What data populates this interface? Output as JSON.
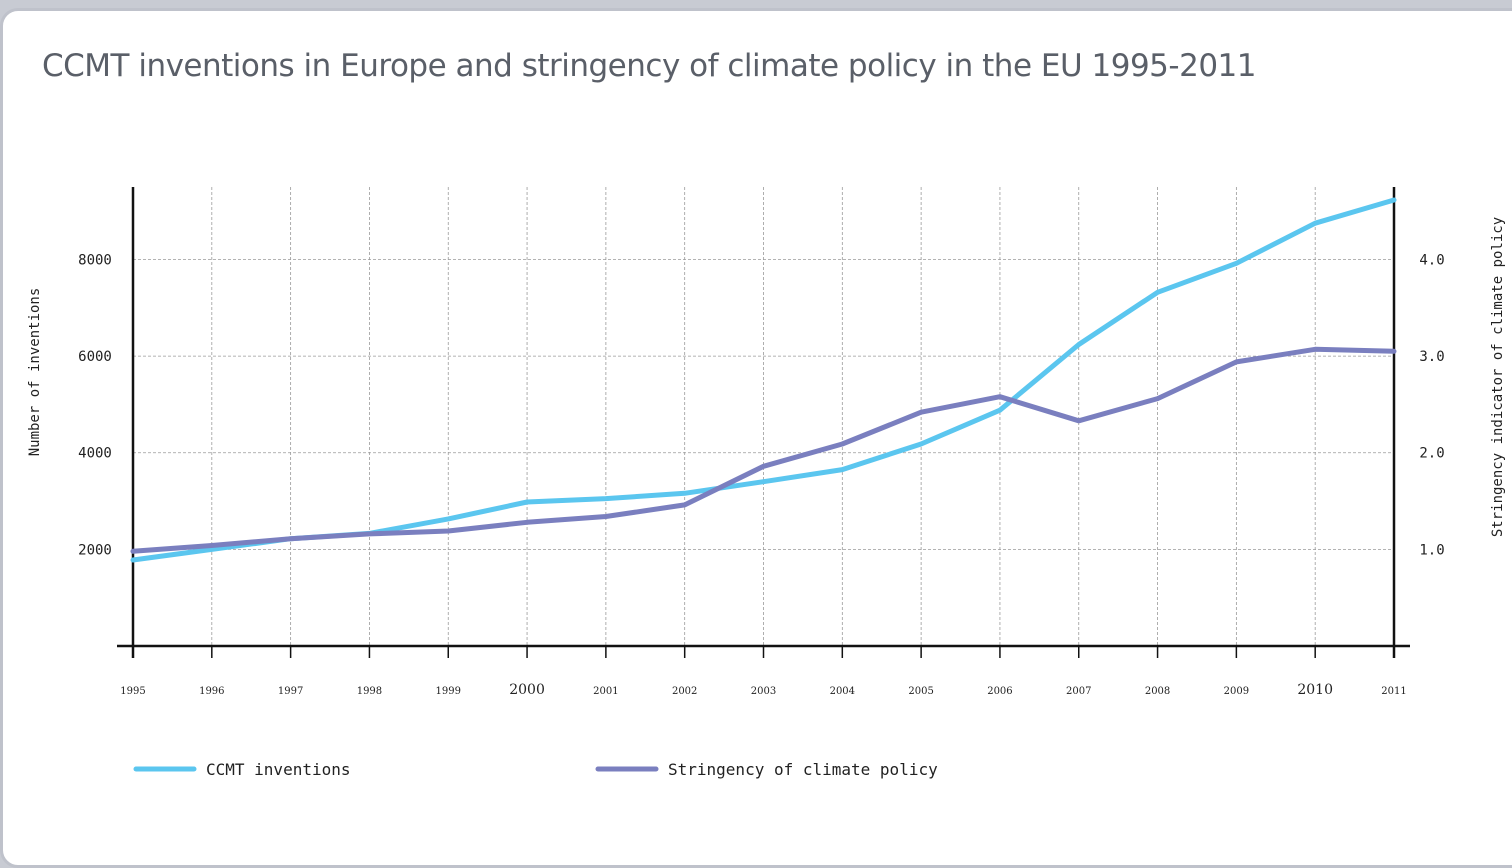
{
  "title": "CCMT inventions in Europe and stringency of climate policy in the EU 1995-2011",
  "colors": {
    "ccmt": "#5bc6ef",
    "stringency": "#7a7fbf",
    "axis": "#111111",
    "grid": "#9a9a9a"
  },
  "chart_data": {
    "type": "line",
    "x": [
      1995,
      1996,
      1997,
      1998,
      1999,
      2000,
      2001,
      2002,
      2003,
      2004,
      2005,
      2006,
      2007,
      2008,
      2009,
      2010,
      2011
    ],
    "xticks_large": [
      2000,
      2010
    ],
    "xlim": [
      1995,
      2011
    ],
    "ylabel_left": "Number of inventions",
    "ylabel_right": "Stringency indicator of climate policy",
    "ylim_left": [
      0,
      9500
    ],
    "ylim_right": [
      0,
      4.75
    ],
    "yticks_left": [
      2000,
      4000,
      6000,
      8000
    ],
    "yticks_right": [
      1.0,
      2.0,
      3.0,
      4.0
    ],
    "yticks_right_labels": [
      "1.0",
      "2.0",
      "3.0",
      "4.0"
    ],
    "grid": true,
    "legend_position": "bottom",
    "series": [
      {
        "name": "CCMT inventions",
        "axis": "left",
        "values": [
          1780,
          2000,
          2220,
          2330,
          2630,
          2980,
          3050,
          3160,
          3400,
          3650,
          4180,
          4880,
          6240,
          7320,
          7920,
          8750,
          9230
        ]
      },
      {
        "name": "Stringency of climate policy",
        "axis": "right",
        "values": [
          0.98,
          1.04,
          1.11,
          1.16,
          1.19,
          1.28,
          1.34,
          1.46,
          1.86,
          2.09,
          2.42,
          2.58,
          2.33,
          2.56,
          2.94,
          3.07,
          3.05
        ]
      }
    ]
  }
}
